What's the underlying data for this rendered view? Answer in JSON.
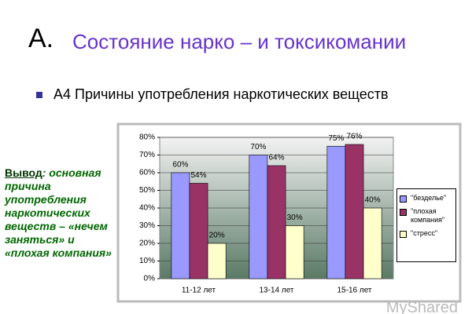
{
  "slide": {
    "title_prefix": "А.",
    "title": "Состояние нарко – и токсикомании",
    "bullet": "А4 Причины употребления наркотических веществ",
    "note_label": "Вывод",
    "note_text": ": основная причина употребления наркотических веществ – «нечем заняться» и «плохая компания»",
    "watermark": "MyShared"
  },
  "chart_data": {
    "type": "bar",
    "categories": [
      "11-12 лет",
      "13-14 лет",
      "15-16 лет"
    ],
    "series": [
      {
        "name": "\"безделье\"",
        "color": "#9999ff",
        "values": [
          60,
          70,
          75
        ],
        "value_labels": [
          "60%",
          "70%",
          "75%"
        ]
      },
      {
        "name": "\"плохая компания\"",
        "color": "#993366",
        "values": [
          54,
          64,
          76
        ],
        "value_labels": [
          "54%",
          "64%",
          "76%"
        ]
      },
      {
        "name": "\"стресс\"",
        "color": "#ffffcc",
        "values": [
          20,
          30,
          40
        ],
        "value_labels": [
          "20%",
          "30%",
          "40%"
        ]
      }
    ],
    "ylim": [
      0,
      80
    ],
    "yticks": [
      {
        "value": 0,
        "label": "0%"
      },
      {
        "value": 10,
        "label": "10%"
      },
      {
        "value": 20,
        "label": "20%"
      },
      {
        "value": 30,
        "label": "30%"
      },
      {
        "value": 40,
        "label": "40%"
      },
      {
        "value": 50,
        "label": "50%"
      },
      {
        "value": 60,
        "label": "60%"
      },
      {
        "value": 70,
        "label": "70%"
      },
      {
        "value": 80,
        "label": "80%"
      }
    ],
    "grid": true
  }
}
